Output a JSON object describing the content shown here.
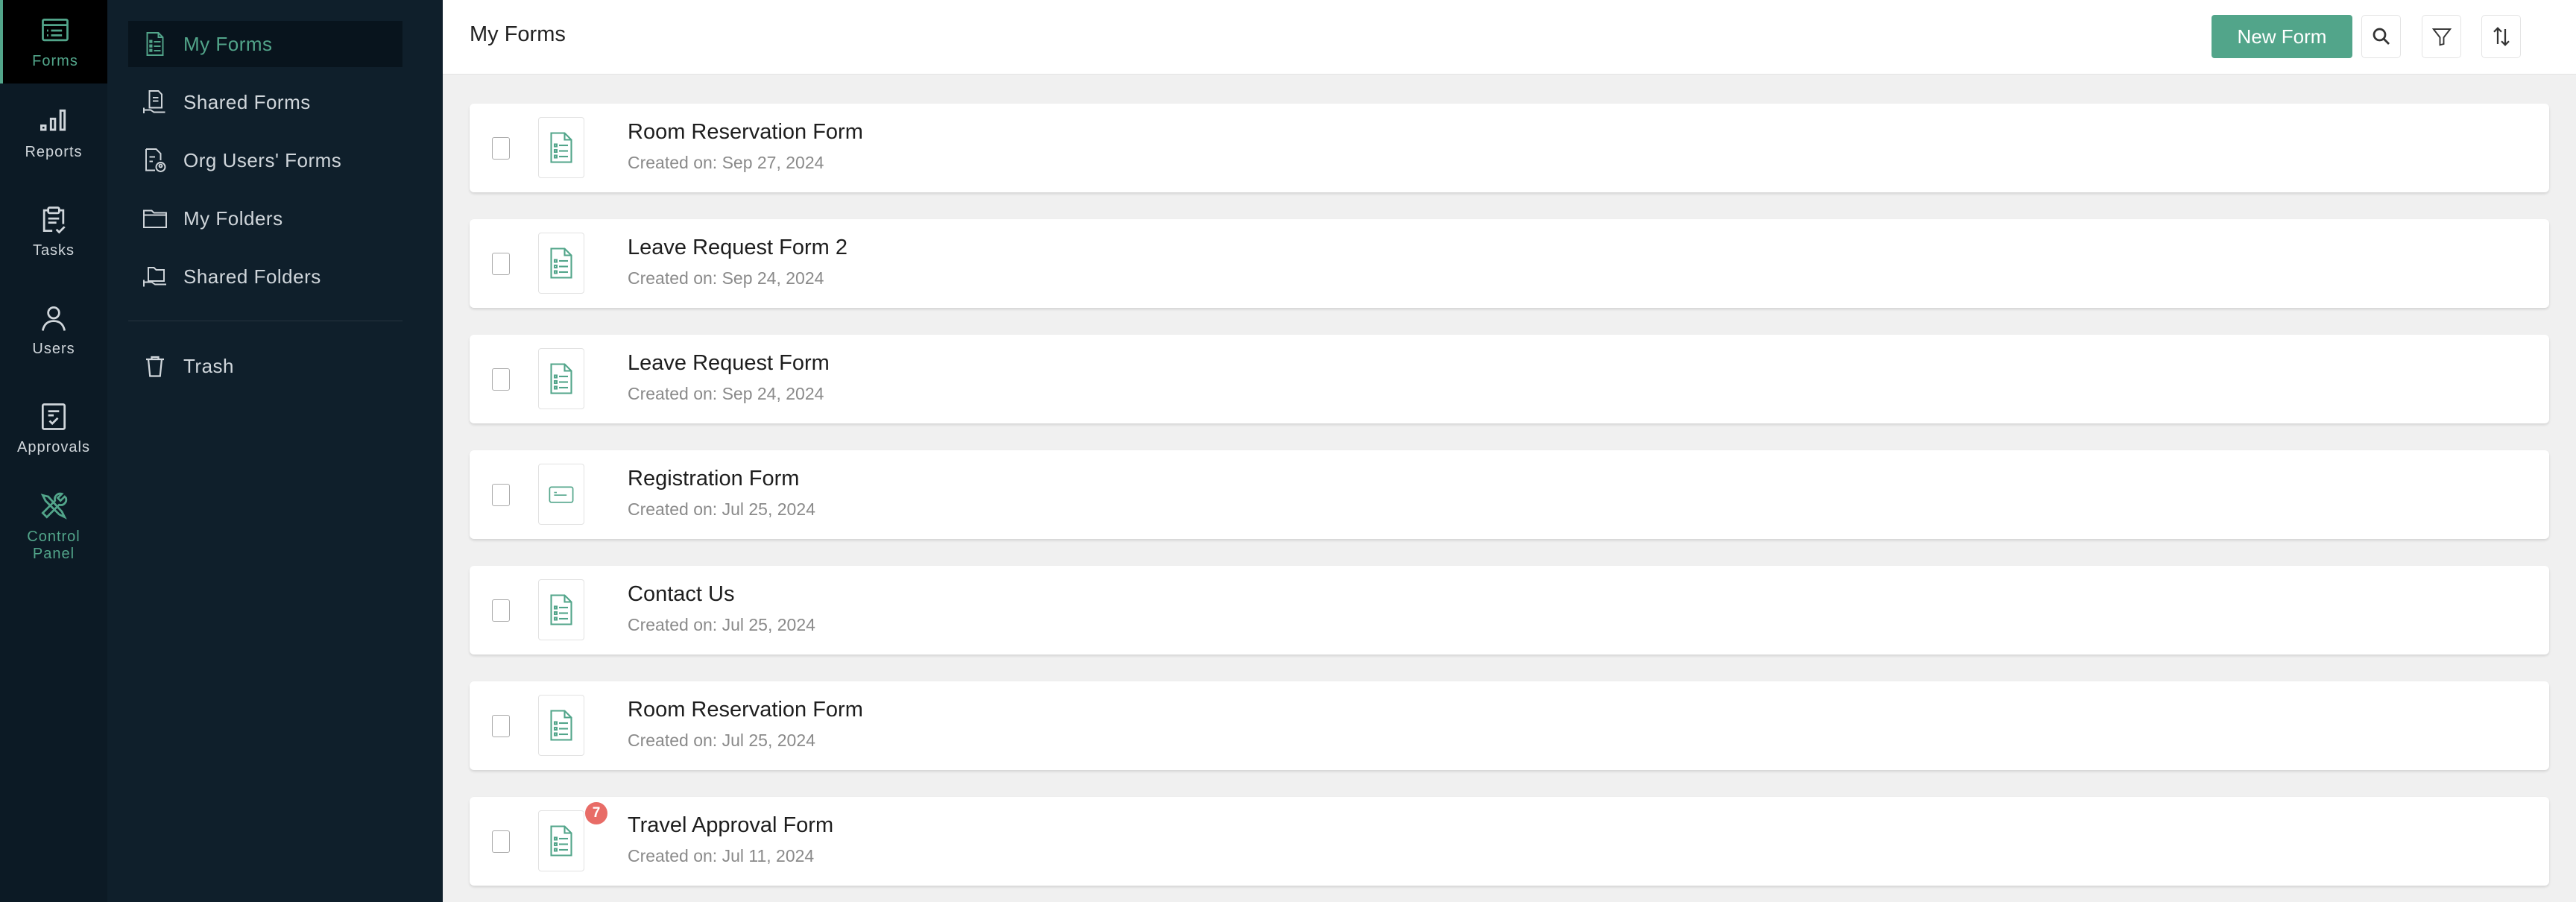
{
  "rail": [
    {
      "label": "Forms",
      "icon": "forms-icon",
      "active": true
    },
    {
      "label": "Reports",
      "icon": "bar-chart-icon"
    },
    {
      "label": "Tasks",
      "icon": "clipboard-check-icon"
    },
    {
      "label": "Users",
      "icon": "user-icon"
    },
    {
      "label": "Approvals",
      "icon": "approval-icon"
    },
    {
      "label": "Control Panel",
      "icon": "tools-icon"
    }
  ],
  "sidebar": {
    "items": [
      {
        "label": "My Forms",
        "icon": "form-doc-icon",
        "active": true
      },
      {
        "label": "Shared Forms",
        "icon": "shared-form-icon"
      },
      {
        "label": "Org Users' Forms",
        "icon": "org-user-form-icon"
      },
      {
        "label": "My Folders",
        "icon": "folder-icon"
      },
      {
        "label": "Shared Folders",
        "icon": "shared-folder-icon"
      }
    ],
    "trash": {
      "label": "Trash",
      "icon": "trash-icon"
    }
  },
  "header": {
    "title": "My Forms",
    "new_form": "New Form",
    "search": "search-icon",
    "filter": "filter-icon",
    "sort": "sort-icon"
  },
  "accent": "#52a58a",
  "forms": [
    {
      "name": "Room Reservation Form",
      "date": "Created on: Sep 27, 2024",
      "icon": "form"
    },
    {
      "name": "Leave Request Form 2",
      "date": "Created on: Sep 24, 2024",
      "icon": "form"
    },
    {
      "name": "Leave Request Form",
      "date": "Created on: Sep 24, 2024",
      "icon": "form"
    },
    {
      "name": "Registration Form",
      "date": "Created on: Jul 25, 2024",
      "icon": "card"
    },
    {
      "name": "Contact Us",
      "date": "Created on: Jul 25, 2024",
      "icon": "form"
    },
    {
      "name": "Room Reservation Form",
      "date": "Created on: Jul 25, 2024",
      "icon": "form"
    },
    {
      "name": "Travel Approval Form",
      "date": "Created on: Jul 11, 2024",
      "icon": "form",
      "badge": "7"
    }
  ]
}
